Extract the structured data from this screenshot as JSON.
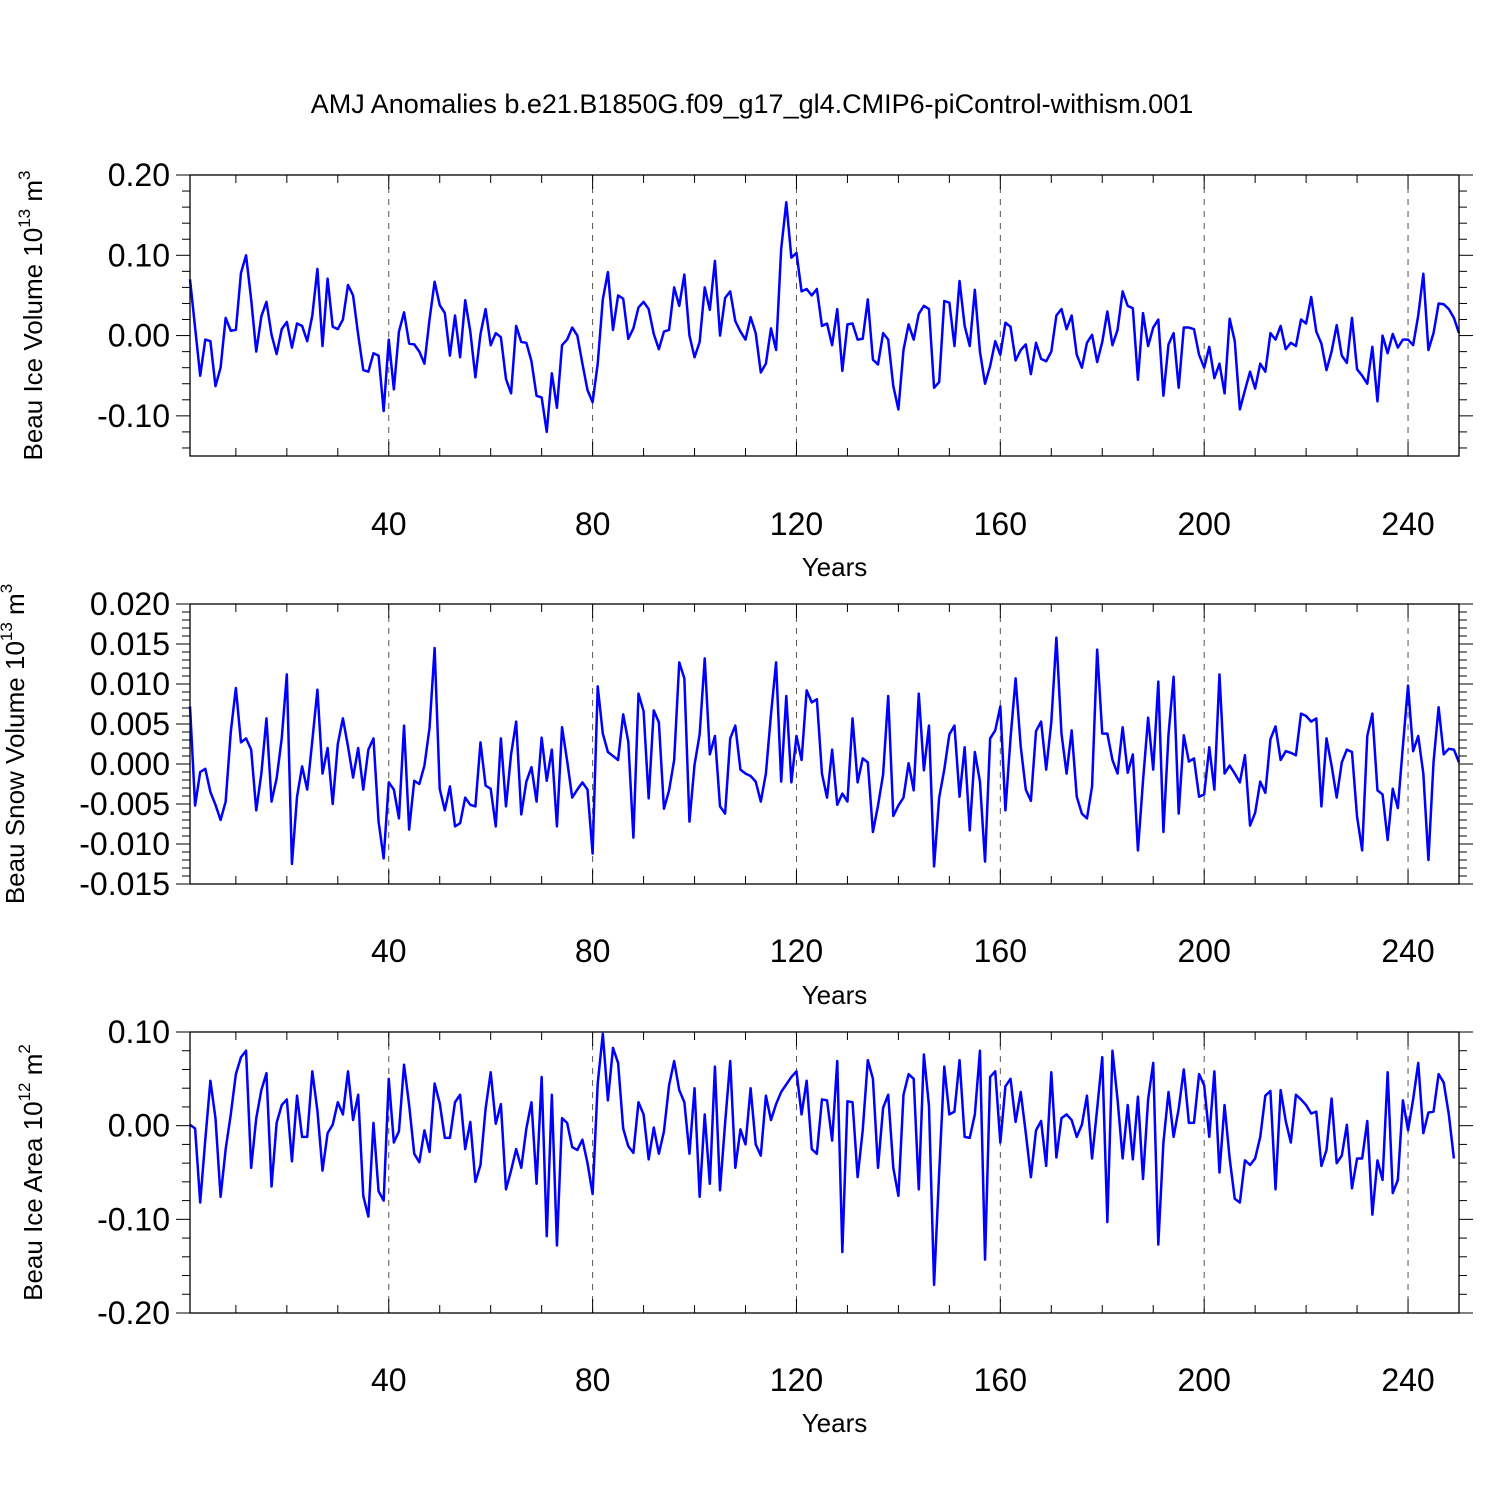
{
  "figure_title": "AMJ Anomalies b.e21.B1850G.f09_g17_gl4.CMIP6-piControl-withism.001",
  "colors": {
    "series": "#0000ff",
    "axes": "#000000",
    "grid": "#555555"
  },
  "chart_data": [
    {
      "type": "line",
      "ylabel": "Beau Ice Volume",
      "yunit_base": "10",
      "yunit_exp": "13",
      "yunit_sym": "m",
      "yunit_symexp": "3",
      "xlabel": "Years",
      "xlim": [
        1,
        250
      ],
      "ylim": [
        -0.15,
        0.2
      ],
      "xticks": [
        40,
        80,
        120,
        160,
        200,
        240
      ],
      "xticklabels": [
        "40",
        "80",
        "120",
        "160",
        "200",
        "240"
      ],
      "yticks": [
        -0.1,
        0.0,
        0.1,
        0.2
      ],
      "yticklabels": [
        "-0.10",
        "0.00",
        "0.10",
        "0.20"
      ],
      "grid": "x-dashed",
      "series": [
        {
          "values": [
            0.07,
            0.01,
            -0.05,
            -0.005,
            -0.007,
            -0.063,
            -0.04,
            0.022,
            0.006,
            0.007,
            0.078,
            0.1,
            0.045,
            -0.02,
            0.024,
            0.042,
            0.001,
            -0.023,
            0.008,
            0.017,
            -0.015,
            0.015,
            0.012,
            -0.007,
            0.025,
            0.083,
            -0.013,
            0.071,
            0.011,
            0.008,
            0.02,
            0.063,
            0.05,
            0.001,
            -0.043,
            -0.045,
            -0.022,
            -0.025,
            -0.094,
            -0.005,
            -0.067,
            0.005,
            0.029,
            -0.01,
            -0.011,
            -0.02,
            -0.035,
            0.02,
            0.067,
            0.038,
            0.028,
            -0.025,
            0.025,
            -0.027,
            0.044,
            0.005,
            -0.052,
            0.002,
            0.033,
            -0.012,
            0.003,
            -0.002,
            -0.054,
            -0.072,
            0.012,
            -0.008,
            -0.009,
            -0.032,
            -0.075,
            -0.077,
            -0.12,
            -0.047,
            -0.09,
            -0.012,
            -0.005,
            0.01,
            0.0,
            -0.035,
            -0.068,
            -0.083,
            -0.035,
            0.045,
            0.079,
            0.007,
            0.05,
            0.046,
            -0.004,
            0.009,
            0.035,
            0.042,
            0.033,
            0.002,
            -0.017,
            0.005,
            0.007,
            0.06,
            0.037,
            0.076,
            0.0,
            -0.027,
            -0.008,
            0.06,
            0.032,
            0.093,
            0.0,
            0.047,
            0.055,
            0.018,
            0.005,
            -0.005,
            0.023,
            0.003,
            -0.046,
            -0.035,
            0.009,
            -0.018,
            0.108,
            0.166,
            0.097,
            0.103,
            0.055,
            0.058,
            0.05,
            0.058,
            0.012,
            0.015,
            -0.012,
            0.033,
            -0.044,
            0.014,
            0.015,
            -0.005,
            -0.004,
            0.045,
            -0.03,
            -0.036,
            0.003,
            -0.005,
            -0.063,
            -0.092,
            -0.018,
            0.014,
            -0.005,
            0.027,
            0.037,
            0.033,
            -0.065,
            -0.058,
            0.043,
            0.041,
            -0.013,
            0.068,
            0.012,
            -0.013,
            0.057,
            -0.02,
            -0.06,
            -0.038,
            -0.007,
            -0.024,
            0.016,
            0.011,
            -0.031,
            -0.018,
            -0.011,
            -0.048,
            -0.009,
            -0.029,
            -0.032,
            -0.02,
            0.025,
            0.033,
            0.008,
            0.025,
            -0.024,
            -0.04,
            -0.009,
            0.001,
            -0.033,
            -0.008,
            0.03,
            -0.012,
            0.007,
            0.055,
            0.037,
            0.034,
            -0.055,
            0.028,
            -0.013,
            0.01,
            0.02,
            -0.075,
            -0.011,
            0.003,
            -0.065,
            0.01,
            0.01,
            0.008,
            -0.024,
            -0.04,
            -0.014,
            -0.053,
            -0.035,
            -0.072,
            0.021,
            -0.007,
            -0.092,
            -0.068,
            -0.045,
            -0.066,
            -0.035,
            -0.045,
            0.003,
            -0.005,
            0.012,
            -0.017,
            -0.009,
            -0.013,
            0.02,
            0.015,
            0.048,
            0.005,
            -0.01,
            -0.043,
            -0.02,
            0.013,
            -0.025,
            -0.034,
            0.022,
            -0.042,
            -0.05,
            -0.06,
            -0.014,
            -0.082,
            0.0,
            -0.022,
            0.002,
            -0.015,
            -0.005,
            -0.005,
            -0.012,
            0.025,
            0.077,
            -0.018,
            0.003,
            0.04,
            0.039,
            0.033,
            0.022,
            0.003
          ]
        }
      ]
    },
    {
      "type": "line",
      "ylabel": "Beau Snow Volume",
      "yunit_base": "10",
      "yunit_exp": "13",
      "yunit_sym": "m",
      "yunit_symexp": "3",
      "xlabel": "Years",
      "xlim": [
        1,
        250
      ],
      "ylim": [
        -0.015,
        0.02
      ],
      "xticks": [
        40,
        80,
        120,
        160,
        200,
        240
      ],
      "xticklabels": [
        "40",
        "80",
        "120",
        "160",
        "200",
        "240"
      ],
      "yticks": [
        -0.015,
        -0.01,
        -0.005,
        0.0,
        0.005,
        0.01,
        0.015,
        0.02
      ],
      "yticklabels": [
        "-0.015",
        "-0.010",
        "-0.005",
        "0.000",
        "0.005",
        "0.010",
        "0.015",
        "0.020"
      ],
      "grid": "x-dashed",
      "series": [
        {
          "values": [
            0.0072,
            -0.0052,
            -0.001,
            -0.0006,
            -0.0035,
            -0.0051,
            -0.007,
            -0.0047,
            0.004,
            0.0095,
            0.0027,
            0.0032,
            0.0018,
            -0.0058,
            -0.0012,
            0.0057,
            -0.0047,
            -0.0018,
            0.0032,
            0.0112,
            -0.0125,
            -0.0041,
            -0.0003,
            -0.0032,
            0.0029,
            0.0093,
            -0.0012,
            0.002,
            -0.005,
            0.0025,
            0.0057,
            0.0022,
            -0.0017,
            0.002,
            -0.0032,
            0.0018,
            0.0032,
            -0.0072,
            -0.0118,
            -0.0023,
            -0.0032,
            -0.0068,
            0.0048,
            -0.0082,
            -0.0021,
            -0.0025,
            -0.0002,
            0.0045,
            0.0145,
            -0.0031,
            -0.0058,
            -0.0028,
            -0.0078,
            -0.0074,
            -0.0042,
            -0.0051,
            -0.0053,
            0.0027,
            -0.0027,
            -0.0031,
            -0.0078,
            0.0032,
            -0.0053,
            0.0012,
            0.0053,
            -0.0063,
            -0.0022,
            -0.0004,
            -0.0047,
            0.0033,
            -0.0021,
            0.0018,
            -0.0078,
            0.0046,
            0.0004,
            -0.0042,
            -0.0032,
            -0.0023,
            -0.0032,
            -0.0112,
            0.0097,
            0.0038,
            0.0015,
            0.001,
            0.0005,
            0.0062,
            0.0028,
            -0.0092,
            0.0088,
            0.0066,
            -0.0043,
            0.0067,
            0.0052,
            -0.0056,
            -0.0033,
            0.0005,
            0.0127,
            0.0107,
            -0.0072,
            -0.0001,
            0.0037,
            0.0132,
            0.0012,
            0.0035,
            -0.0053,
            -0.0062,
            0.0032,
            0.0048,
            -0.0007,
            -0.0012,
            -0.0015,
            -0.0022,
            -0.0047,
            -0.0012,
            0.0062,
            0.0127,
            -0.0022,
            0.0085,
            -0.0023,
            0.0035,
            0.0005,
            0.0092,
            0.0077,
            0.0081,
            -0.0012,
            -0.0042,
            0.0018,
            -0.0051,
            -0.0037,
            -0.0047,
            0.0057,
            -0.0023,
            0.0007,
            0.0002,
            -0.0085,
            -0.0052,
            -0.0013,
            0.0085,
            -0.0065,
            -0.0052,
            -0.0042,
            0.0001,
            -0.0033,
            0.0088,
            -0.0008,
            0.0048,
            -0.0128,
            -0.0042,
            -0.0007,
            0.0037,
            0.0048,
            -0.0041,
            0.0021,
            -0.0083,
            0.0015,
            -0.0022,
            -0.0122,
            0.0032,
            0.0042,
            0.0072,
            -0.0058,
            0.0032,
            0.0107,
            0.0022,
            -0.0032,
            -0.0046,
            0.0041,
            0.0053,
            -0.0007,
            0.0052,
            0.0158,
            0.0038,
            -0.0012,
            0.0042,
            -0.0041,
            -0.0062,
            -0.0068,
            -0.0028,
            0.0143,
            0.0038,
            0.0038,
            0.0005,
            -0.0012,
            0.0046,
            -0.0011,
            0.0012,
            -0.0108,
            -0.0021,
            0.0058,
            -0.0007,
            0.0103,
            -0.0085,
            0.0037,
            0.0109,
            -0.0062,
            0.0036,
            0.0003,
            0.0007,
            -0.0041,
            -0.0038,
            0.0021,
            -0.0032,
            0.0112,
            -0.0012,
            -0.0002,
            -0.0012,
            -0.0023,
            0.0011,
            -0.0077,
            -0.0061,
            -0.0022,
            -0.0036,
            0.0031,
            0.0047,
            0.0005,
            0.0016,
            0.0014,
            0.0011,
            0.0063,
            0.006,
            0.0053,
            0.0057,
            -0.0053,
            0.0032,
            -0.0002,
            -0.0042,
            0.0002,
            0.0018,
            0.0015,
            -0.0066,
            -0.0108,
            0.0035,
            0.0063,
            -0.0033,
            -0.0038,
            -0.0095,
            -0.0031,
            -0.0055,
            0.0023,
            0.0098,
            0.0016,
            0.0035,
            -0.0012,
            -0.012,
            0.0002,
            0.0071,
            0.0012,
            0.0019,
            0.0018,
            0.0002
          ]
        }
      ]
    },
    {
      "type": "line",
      "ylabel": "Beau Ice Area",
      "yunit_base": "10",
      "yunit_exp": "12",
      "yunit_sym": "m",
      "yunit_symexp": "2",
      "xlabel": "Years",
      "xlim": [
        1,
        250
      ],
      "ylim": [
        -0.2,
        0.1
      ],
      "xticks": [
        40,
        80,
        120,
        160,
        200,
        240
      ],
      "xticklabels": [
        "40",
        "80",
        "120",
        "160",
        "200",
        "240"
      ],
      "yticks": [
        -0.2,
        -0.1,
        0.0,
        0.1
      ],
      "yticklabels": [
        "-0.20",
        "-0.10",
        "0.00",
        "0.10"
      ],
      "grid": "x-dashed",
      "series": [
        {
          "values": [
            0.001,
            -0.003,
            -0.082,
            -0.015,
            0.048,
            0.008,
            -0.076,
            -0.025,
            0.012,
            0.055,
            0.073,
            0.08,
            -0.045,
            0.008,
            0.038,
            0.056,
            -0.065,
            0.003,
            0.022,
            0.028,
            -0.038,
            0.032,
            -0.012,
            -0.012,
            0.058,
            0.016,
            -0.048,
            -0.008,
            0.001,
            0.025,
            0.012,
            0.058,
            0.006,
            0.033,
            -0.075,
            -0.097,
            0.003,
            -0.07,
            -0.08,
            0.05,
            -0.018,
            -0.006,
            0.065,
            0.022,
            -0.03,
            -0.039,
            -0.005,
            -0.028,
            0.045,
            0.024,
            -0.013,
            -0.013,
            0.025,
            0.033,
            -0.025,
            0.004,
            -0.06,
            -0.042,
            0.018,
            0.057,
            0.002,
            0.023,
            -0.068,
            -0.048,
            -0.025,
            -0.045,
            -0.003,
            0.025,
            -0.062,
            0.052,
            -0.118,
            0.033,
            -0.128,
            0.008,
            0.003,
            -0.023,
            -0.026,
            -0.015,
            -0.04,
            -0.073,
            0.045,
            0.098,
            0.027,
            0.083,
            0.067,
            -0.003,
            -0.022,
            -0.029,
            0.025,
            0.012,
            -0.036,
            -0.002,
            -0.03,
            -0.006,
            0.043,
            0.069,
            0.038,
            0.025,
            -0.03,
            0.04,
            -0.076,
            0.012,
            -0.062,
            0.063,
            -0.069,
            0.003,
            0.069,
            -0.045,
            -0.004,
            -0.02,
            0.04,
            -0.02,
            -0.032,
            0.032,
            0.006,
            0.023,
            0.036,
            0.044,
            0.052,
            0.058,
            0.012,
            0.048,
            -0.025,
            -0.03,
            0.028,
            0.027,
            -0.016,
            0.069,
            -0.135,
            0.026,
            0.025,
            -0.055,
            -0.005,
            0.07,
            0.05,
            -0.045,
            0.019,
            0.033,
            -0.045,
            -0.075,
            0.033,
            0.055,
            0.05,
            -0.068,
            0.076,
            0.021,
            -0.17,
            -0.05,
            0.063,
            0.012,
            0.015,
            0.07,
            -0.012,
            -0.013,
            0.012,
            0.08,
            -0.143,
            0.052,
            0.058,
            -0.018,
            0.042,
            0.05,
            0.004,
            0.036,
            -0.008,
            -0.055,
            -0.005,
            0.005,
            -0.043,
            0.057,
            -0.034,
            0.008,
            0.012,
            0.006,
            -0.012,
            0.001,
            0.032,
            -0.035,
            0.018,
            0.073,
            -0.103,
            0.08,
            0.028,
            -0.035,
            0.022,
            -0.036,
            0.031,
            -0.057,
            0.028,
            0.067,
            -0.127,
            -0.018,
            0.036,
            -0.012,
            0.018,
            0.06,
            0.003,
            0.003,
            0.055,
            0.043,
            -0.012,
            0.058,
            -0.05,
            0.022,
            -0.035,
            -0.078,
            -0.082,
            -0.037,
            -0.042,
            -0.035,
            -0.012,
            0.032,
            0.037,
            -0.068,
            0.038,
            0.005,
            -0.018,
            0.033,
            0.028,
            0.022,
            0.013,
            0.015,
            -0.043,
            -0.026,
            0.029,
            -0.04,
            -0.032,
            0.001,
            -0.067,
            -0.035,
            -0.035,
            0.005,
            -0.095,
            -0.037,
            -0.058,
            0.057,
            -0.072,
            -0.058,
            0.027,
            -0.005,
            0.028,
            0.067,
            -0.008,
            0.014,
            0.015,
            0.055,
            0.046,
            0.012,
            -0.035
          ]
        }
      ]
    }
  ]
}
